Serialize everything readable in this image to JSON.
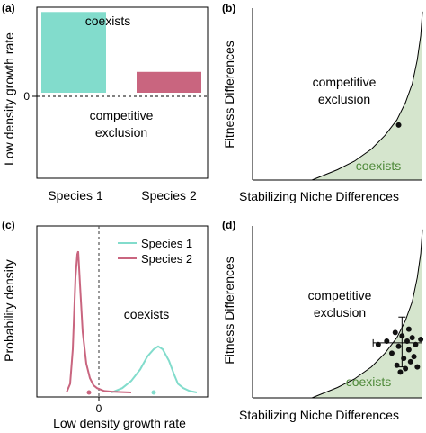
{
  "chart_data": [
    {
      "panel": "(a)",
      "type": "bar",
      "ylabel": "Low density growth rate",
      "categories": [
        "Species 1",
        "Species 2"
      ],
      "values": [
        0.85,
        0.22
      ],
      "ylim": [
        -0.9,
        0.9
      ],
      "zero_label": "0",
      "region_labels": {
        "above": "coexists",
        "below": [
          "competitive",
          "exclusion"
        ]
      },
      "colors": [
        "#82dccc",
        "#c9657f"
      ]
    },
    {
      "panel": "(b)",
      "type": "area",
      "xlabel": "Stabilizing Niche Differences",
      "ylabel": "Fitness Differences",
      "xlim": [
        0,
        1
      ],
      "ylim": [
        0,
        1
      ],
      "boundary_curve": {
        "x": [
          0.35,
          0.5,
          0.6,
          0.7,
          0.78,
          0.85,
          0.9,
          0.94,
          0.97,
          0.99,
          1.0
        ],
        "y": [
          0.0,
          0.06,
          0.11,
          0.18,
          0.26,
          0.35,
          0.45,
          0.56,
          0.7,
          0.84,
          0.98
        ]
      },
      "points": [
        {
          "x": 0.86,
          "y": 0.32
        }
      ],
      "region_labels": {
        "top": [
          "competitive",
          "exclusion"
        ],
        "bottom": "coexists"
      },
      "fill_color": "#d5e5cd",
      "coexists_color": "#4f8a3a"
    },
    {
      "panel": "(c)",
      "type": "line",
      "xlabel": "Low density growth rate",
      "ylabel": "Probability density",
      "zero_label": "0",
      "xlim": [
        -0.45,
        1.45
      ],
      "ylim": [
        0,
        1
      ],
      "series": [
        {
          "name": "Species 1",
          "color": "#82dccc",
          "x": [
            0.38,
            0.5,
            0.6,
            0.7,
            0.78,
            0.85,
            0.9,
            0.95,
            1.02,
            1.08,
            1.12,
            1.18,
            1.25,
            1.33
          ],
          "y": [
            0.0,
            0.03,
            0.08,
            0.16,
            0.25,
            0.3,
            0.32,
            0.3,
            0.22,
            0.12,
            0.06,
            0.03,
            0.01,
            0.0
          ],
          "mean_point": 0.85
        },
        {
          "name": "Species 2",
          "color": "#c9657f",
          "x": [
            -0.12,
            -0.08,
            -0.05,
            -0.02,
            0.0,
            0.01,
            0.03,
            0.06,
            0.1,
            0.14,
            0.18,
            0.22,
            0.3,
            0.4,
            0.6
          ],
          "y": [
            0.0,
            0.06,
            0.3,
            0.8,
            0.96,
            0.98,
            0.75,
            0.42,
            0.2,
            0.1,
            0.05,
            0.03,
            0.01,
            0.005,
            0.0
          ],
          "mean_point": 0.13
        }
      ],
      "region_labels": {
        "right": "coexists"
      }
    },
    {
      "panel": "(d)",
      "type": "scatter",
      "xlabel": "Stabilizing Niche Differences",
      "ylabel": "Fitness Differences",
      "xlim": [
        0,
        1
      ],
      "ylim": [
        0,
        1
      ],
      "boundary_curve": {
        "x": [
          0.35,
          0.5,
          0.6,
          0.7,
          0.78,
          0.85,
          0.9,
          0.94,
          0.97,
          0.99,
          1.0
        ],
        "y": [
          0.0,
          0.06,
          0.11,
          0.18,
          0.26,
          0.35,
          0.45,
          0.56,
          0.7,
          0.84,
          0.98
        ]
      },
      "points": [
        {
          "x": 0.74,
          "y": 0.31
        },
        {
          "x": 0.79,
          "y": 0.33
        },
        {
          "x": 0.82,
          "y": 0.26
        },
        {
          "x": 0.84,
          "y": 0.38
        },
        {
          "x": 0.86,
          "y": 0.3
        },
        {
          "x": 0.88,
          "y": 0.36
        },
        {
          "x": 0.89,
          "y": 0.23
        },
        {
          "x": 0.91,
          "y": 0.33
        },
        {
          "x": 0.92,
          "y": 0.28
        },
        {
          "x": 0.93,
          "y": 0.21
        },
        {
          "x": 0.94,
          "y": 0.35
        },
        {
          "x": 0.95,
          "y": 0.24
        },
        {
          "x": 0.96,
          "y": 0.31
        },
        {
          "x": 0.97,
          "y": 0.18
        },
        {
          "x": 0.9,
          "y": 0.17
        },
        {
          "x": 0.85,
          "y": 0.19
        },
        {
          "x": 0.92,
          "y": 0.4
        },
        {
          "x": 0.99,
          "y": 0.34
        },
        {
          "x": 0.87,
          "y": 0.15
        }
      ],
      "mean": {
        "x": 0.88,
        "y": 0.32,
        "xerr": [
          0.71,
          1.02
        ],
        "yerr": [
          0.18,
          0.47
        ]
      },
      "region_labels": {
        "top": [
          "competitive",
          "exclusion"
        ],
        "bottom": "coexists"
      },
      "fill_color": "#d5e5cd",
      "coexists_color": "#4f8a3a"
    }
  ]
}
